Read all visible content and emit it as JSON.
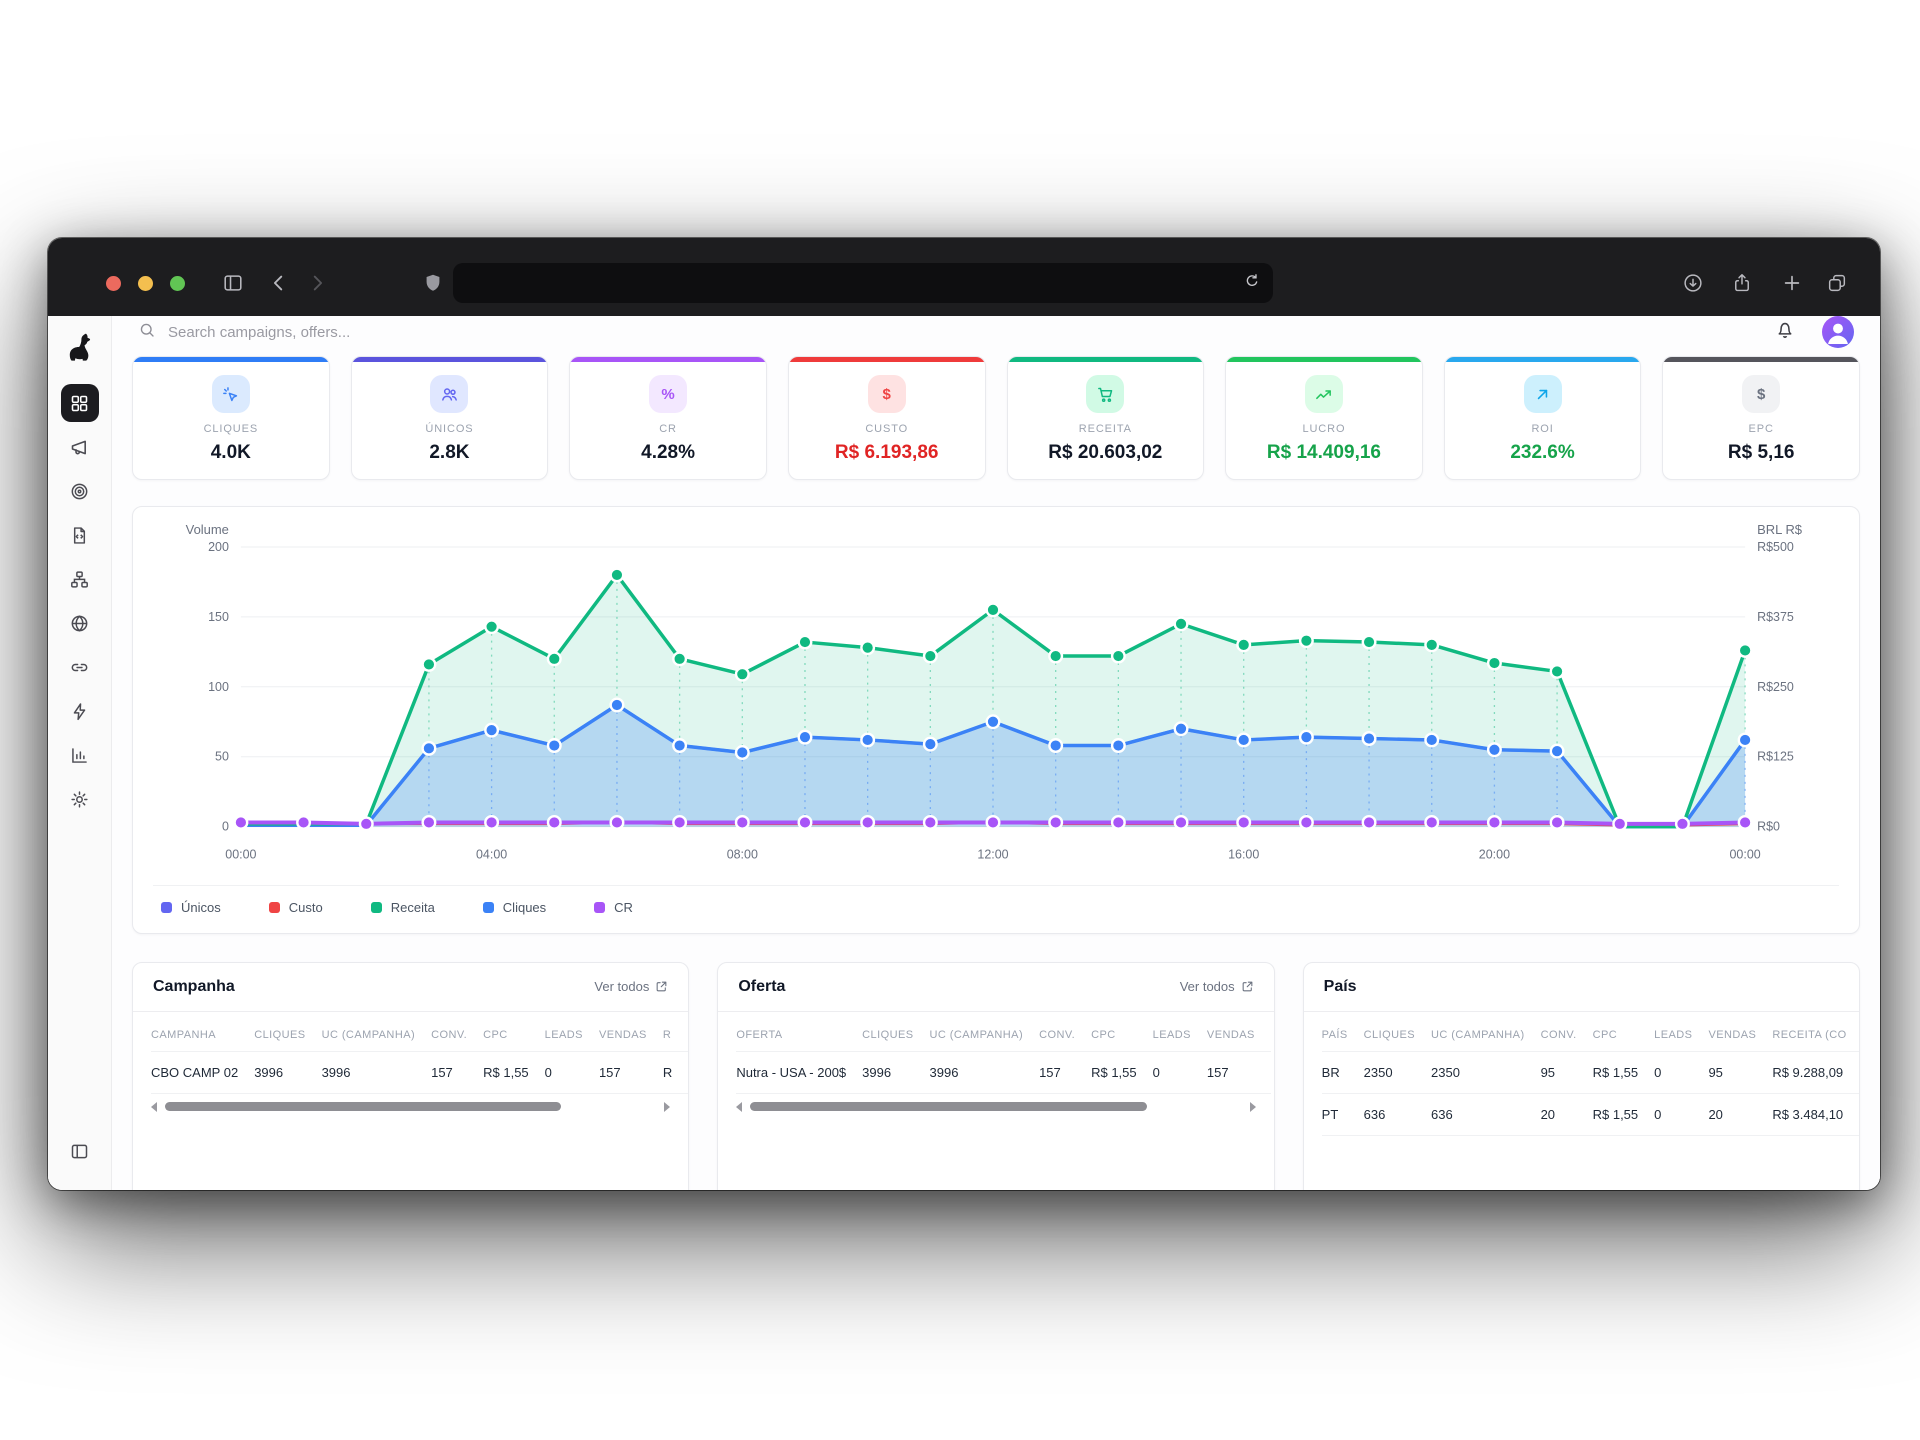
{
  "browser": {
    "traffic_lights": {
      "close": "#ec6a5e",
      "minimize": "#f4bf4f",
      "zoom": "#61c554"
    },
    "address_text": ""
  },
  "app": {
    "search_placeholder": "Search campaigns, offers...",
    "kpi_cards": [
      {
        "key": "cliques",
        "label": "CLIQUES",
        "value": "4.0K",
        "accent": "#2f7df6",
        "icon": "cursor-click",
        "icon_bg": "#dbeafe",
        "icon_color": "#3b82f6",
        "value_color": "#111827"
      },
      {
        "key": "unicos",
        "label": "ÚNICOS",
        "value": "2.8K",
        "accent": "#5b54dd",
        "icon": "users",
        "icon_bg": "#e0e7ff",
        "icon_color": "#6366f1",
        "value_color": "#111827"
      },
      {
        "key": "cr",
        "label": "CR",
        "value": "4.28%",
        "accent": "#a855f7",
        "icon": "percent",
        "icon_bg": "#f3e8ff",
        "icon_color": "#a855f7",
        "value_color": "#111827"
      },
      {
        "key": "custo",
        "label": "CUSTO",
        "value": "R$ 6.193,86",
        "accent": "#ef3b3b",
        "icon": "dollar",
        "icon_bg": "#fee2e2",
        "icon_color": "#ef4444",
        "value_color": "#e02424"
      },
      {
        "key": "receita",
        "label": "RECEITA",
        "value": "R$ 20.603,02",
        "accent": "#10b981",
        "icon": "cart",
        "icon_bg": "#d1fae5",
        "icon_color": "#10b981",
        "value_color": "#111827"
      },
      {
        "key": "lucro",
        "label": "LUCRO",
        "value": "R$ 14.409,16",
        "accent": "#22c55e",
        "icon": "trend-up",
        "icon_bg": "#dcfce7",
        "icon_color": "#22c55e",
        "value_color": "#16a34a"
      },
      {
        "key": "roi",
        "label": "ROI",
        "value": "232.6%",
        "accent": "#29a8ee",
        "icon": "arrow-up-right",
        "icon_bg": "#cdf0fd",
        "icon_color": "#0ea5e9",
        "value_color": "#16a34a"
      },
      {
        "key": "epc",
        "label": "EPC",
        "value": "R$ 5,16",
        "accent": "#55555c",
        "icon": "dollar",
        "icon_bg": "#f1f2f4",
        "icon_color": "#6b7280",
        "value_color": "#111827"
      }
    ]
  },
  "chart_data": {
    "type": "area",
    "x_count": 25,
    "x_tick_positions": [
      0,
      4,
      8,
      12,
      16,
      20,
      24
    ],
    "x_tick_labels": [
      "00:00",
      "04:00",
      "08:00",
      "12:00",
      "16:00",
      "20:00",
      "00:00"
    ],
    "left_axis": {
      "title": "Volume",
      "ticks": [
        0,
        50,
        100,
        150,
        200
      ],
      "max": 200
    },
    "right_axis": {
      "title": "BRL R$",
      "ticks": [
        "R$0",
        "R$125",
        "R$250",
        "R$375",
        "R$500"
      ]
    },
    "series": [
      {
        "key": "unicos",
        "name": "Únicos",
        "color": "#6366f1",
        "values": [
          1,
          1,
          1,
          56,
          69,
          58,
          87,
          58,
          53,
          64,
          62,
          59,
          75,
          58,
          58,
          70,
          62,
          64,
          63,
          62,
          55,
          54,
          0,
          0,
          62
        ]
      },
      {
        "key": "custo",
        "name": "Custo",
        "color": "#ef4444",
        "values": [
          2,
          2,
          2,
          2,
          2,
          2,
          3,
          2,
          2,
          2,
          2,
          2,
          3,
          2,
          2,
          2,
          2,
          2,
          2,
          2,
          2,
          2,
          1,
          1,
          2
        ]
      },
      {
        "key": "receita",
        "name": "Receita",
        "color": "#10b981",
        "values": [
          2,
          2,
          2,
          116,
          143,
          120,
          180,
          120,
          109,
          132,
          128,
          122,
          155,
          122,
          122,
          145,
          130,
          133,
          132,
          130,
          117,
          111,
          0,
          0,
          126
        ]
      },
      {
        "key": "cliques",
        "name": "Cliques",
        "color": "#3b82f6",
        "values": [
          1,
          1,
          1,
          56,
          69,
          58,
          87,
          58,
          53,
          64,
          62,
          59,
          75,
          58,
          58,
          70,
          62,
          64,
          63,
          62,
          55,
          54,
          0,
          0,
          62
        ]
      },
      {
        "key": "cr",
        "name": "CR",
        "color": "#a855f7",
        "values": [
          3,
          3,
          2,
          3,
          3,
          3,
          3,
          3,
          3,
          3,
          3,
          3,
          3,
          3,
          3,
          3,
          3,
          3,
          3,
          3,
          3,
          3,
          2,
          2,
          3
        ]
      }
    ],
    "legend_position": "bottom-left",
    "grid": true
  },
  "tables": {
    "campanha": {
      "title": "Campanha",
      "link_label": "Ver todos",
      "headers": [
        "CAMPANHA",
        "CLIQUES",
        "UC (CAMPANHA)",
        "CONV.",
        "CPC",
        "LEADS",
        "VENDAS",
        "R"
      ],
      "rows": [
        [
          "CBO CAMP 02",
          "3996",
          "3996",
          "157",
          "R$ 1,55",
          "0",
          "157",
          "R"
        ]
      ]
    },
    "oferta": {
      "title": "Oferta",
      "link_label": "Ver todos",
      "headers": [
        "OFERTA",
        "CLIQUES",
        "UC (CAMPANHA)",
        "CONV.",
        "CPC",
        "LEADS",
        "VENDAS"
      ],
      "rows": [
        [
          "Nutra - USA - 200$",
          "3996",
          "3996",
          "157",
          "R$ 1,55",
          "0",
          "157"
        ]
      ]
    },
    "pais": {
      "title": "País",
      "headers": [
        "PAÍS",
        "CLIQUES",
        "UC (CAMPANHA)",
        "CONV.",
        "CPC",
        "LEADS",
        "VENDAS",
        "RECEITA (CO"
      ],
      "rows": [
        [
          "BR",
          "2350",
          "2350",
          "95",
          "R$ 1,55",
          "0",
          "95",
          "R$ 9.288,09"
        ],
        [
          "PT",
          "636",
          "636",
          "20",
          "R$ 1,55",
          "0",
          "20",
          "R$ 3.484,10"
        ]
      ]
    }
  }
}
